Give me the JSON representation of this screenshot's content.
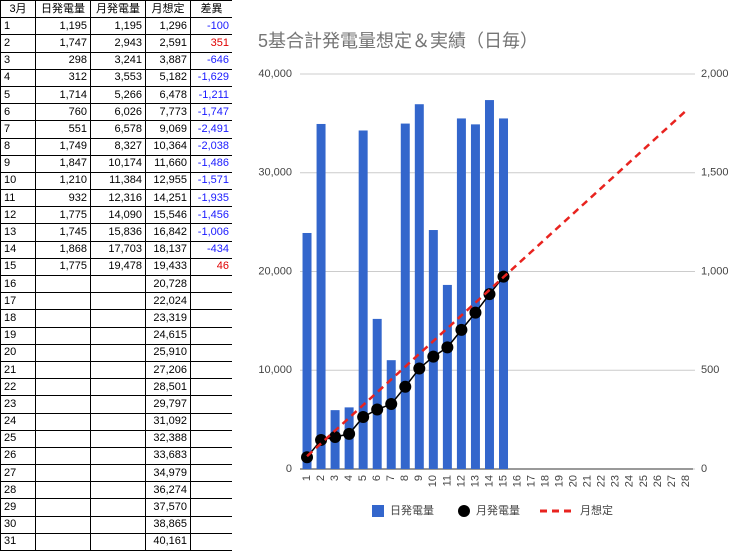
{
  "table": {
    "header": [
      "3月",
      "日発電量",
      "月発電量",
      "月想定",
      "差異"
    ],
    "rows": [
      [
        "1",
        "1,195",
        "1,195",
        "1,296",
        "-100"
      ],
      [
        "2",
        "1,747",
        "2,943",
        "2,591",
        "351"
      ],
      [
        "3",
        "298",
        "3,241",
        "3,887",
        "-646"
      ],
      [
        "4",
        "312",
        "3,553",
        "5,182",
        "-1,629"
      ],
      [
        "5",
        "1,714",
        "5,266",
        "6,478",
        "-1,211"
      ],
      [
        "6",
        "760",
        "6,026",
        "7,773",
        "-1,747"
      ],
      [
        "7",
        "551",
        "6,578",
        "9,069",
        "-2,491"
      ],
      [
        "8",
        "1,749",
        "8,327",
        "10,364",
        "-2,038"
      ],
      [
        "9",
        "1,847",
        "10,174",
        "11,660",
        "-1,486"
      ],
      [
        "10",
        "1,210",
        "11,384",
        "12,955",
        "-1,571"
      ],
      [
        "11",
        "932",
        "12,316",
        "14,251",
        "-1,935"
      ],
      [
        "12",
        "1,775",
        "14,090",
        "15,546",
        "-1,456"
      ],
      [
        "13",
        "1,745",
        "15,836",
        "16,842",
        "-1,006"
      ],
      [
        "14",
        "1,868",
        "17,703",
        "18,137",
        "-434"
      ],
      [
        "15",
        "1,775",
        "19,478",
        "19,433",
        "46"
      ],
      [
        "16",
        "",
        "",
        "20,728",
        ""
      ],
      [
        "17",
        "",
        "",
        "22,024",
        ""
      ],
      [
        "18",
        "",
        "",
        "23,319",
        ""
      ],
      [
        "19",
        "",
        "",
        "24,615",
        ""
      ],
      [
        "20",
        "",
        "",
        "25,910",
        ""
      ],
      [
        "21",
        "",
        "",
        "27,206",
        ""
      ],
      [
        "22",
        "",
        "",
        "28,501",
        ""
      ],
      [
        "23",
        "",
        "",
        "29,797",
        ""
      ],
      [
        "24",
        "",
        "",
        "31,092",
        ""
      ],
      [
        "25",
        "",
        "",
        "32,388",
        ""
      ],
      [
        "26",
        "",
        "",
        "33,683",
        ""
      ],
      [
        "27",
        "",
        "",
        "34,979",
        ""
      ],
      [
        "28",
        "",
        "",
        "36,274",
        ""
      ],
      [
        "29",
        "",
        "",
        "37,570",
        ""
      ],
      [
        "30",
        "",
        "",
        "38,865",
        ""
      ],
      [
        "31",
        "",
        "",
        "40,161",
        ""
      ]
    ]
  },
  "chart_data": {
    "type": "combo",
    "title": "5基合計発電量想定＆実績（日毎）",
    "categories": [
      1,
      2,
      3,
      4,
      5,
      6,
      7,
      8,
      9,
      10,
      11,
      12,
      13,
      14,
      15,
      16,
      17,
      18,
      19,
      20,
      21,
      22,
      23,
      24,
      25,
      26,
      27,
      28
    ],
    "series": [
      {
        "name": "日発電量",
        "type": "bar",
        "axis": "y2",
        "color": "#3366cc",
        "values": [
          1195,
          1747,
          298,
          312,
          1714,
          760,
          551,
          1749,
          1847,
          1210,
          932,
          1775,
          1745,
          1868,
          1775,
          null,
          null,
          null,
          null,
          null,
          null,
          null,
          null,
          null,
          null,
          null,
          null,
          null
        ]
      },
      {
        "name": "月発電量",
        "type": "line",
        "markers": true,
        "color": "#000000",
        "values": [
          1195,
          2943,
          3241,
          3553,
          5266,
          6026,
          6578,
          8327,
          10174,
          11384,
          12316,
          14090,
          15836,
          17703,
          19478,
          null,
          null,
          null,
          null,
          null,
          null,
          null,
          null,
          null,
          null,
          null,
          null,
          null
        ]
      },
      {
        "name": "月想定",
        "type": "line",
        "dashed": true,
        "color": "#e8231f",
        "values": [
          1296,
          2591,
          3887,
          5182,
          6478,
          7773,
          9069,
          10364,
          11660,
          12955,
          14251,
          15546,
          16842,
          18137,
          19433,
          20728,
          22024,
          23319,
          24615,
          25910,
          27206,
          28501,
          29797,
          31092,
          32388,
          33683,
          34979,
          36274
        ]
      }
    ],
    "ylim": [
      0,
      40000
    ],
    "yticks": [
      0,
      {
        "value": 10000,
        "label": "10,000"
      },
      {
        "value": 20000,
        "label": "20,000"
      },
      {
        "value": 30000,
        "label": "30,000"
      },
      {
        "value": 40000,
        "label": "40,000"
      }
    ],
    "y2lim": [
      0,
      2000
    ],
    "y2ticks": [
      0,
      500,
      {
        "value": 1000,
        "label": "1,000"
      },
      {
        "value": 1500,
        "label": "1,500"
      },
      {
        "value": 2000,
        "label": "2,000"
      }
    ],
    "grid": true,
    "legend": "bottom"
  }
}
